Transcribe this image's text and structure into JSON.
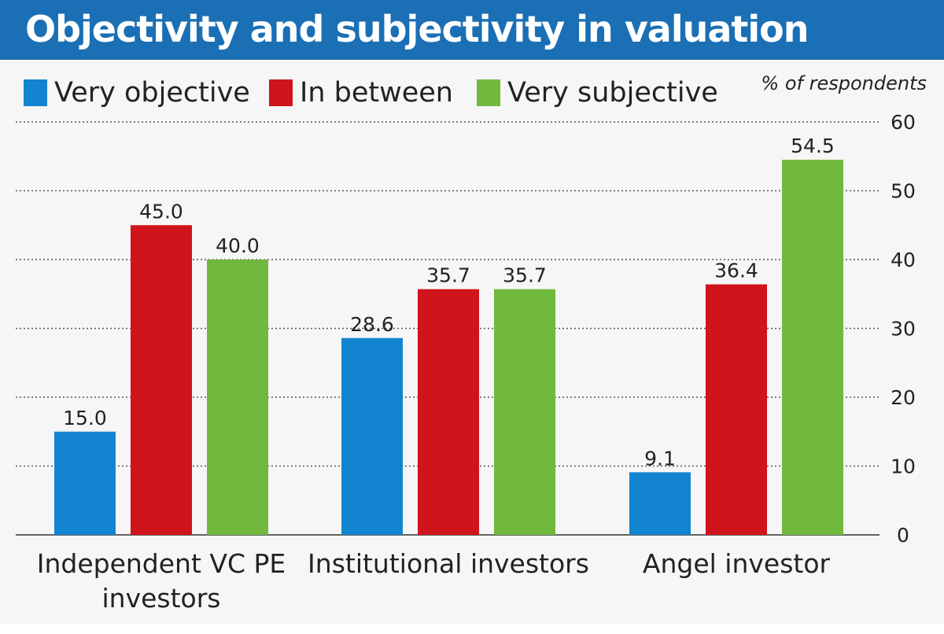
{
  "title": "Objectivity and subjectivity in valuation",
  "unit_label": "% of respondents",
  "colors": {
    "header": "#1a6fb5",
    "very_objective": "#1384cf",
    "in_between": "#d0141c",
    "very_subjective": "#71b83e"
  },
  "legend": [
    {
      "label": "Very objective",
      "color": "#1384cf"
    },
    {
      "label": "In between",
      "color": "#d0141c"
    },
    {
      "label": "Very subjective",
      "color": "#71b83e"
    }
  ],
  "chart_data": {
    "type": "bar",
    "title": "Objectivity and subjectivity in valuation",
    "ylabel": "% of respondents",
    "xlabel": "",
    "categories": [
      [
        "Independent VC PE",
        "investors"
      ],
      [
        "Institutional investors"
      ],
      [
        "Angel investor"
      ]
    ],
    "series": [
      {
        "name": "Very objective",
        "color": "#1384cf",
        "values": [
          15.0,
          28.6,
          9.1
        ],
        "labels": [
          "15.0",
          "28.6",
          "9.1"
        ]
      },
      {
        "name": "In between",
        "color": "#d0141c",
        "values": [
          45.0,
          35.7,
          36.4
        ],
        "labels": [
          "45.0",
          "35.7",
          "36.4"
        ]
      },
      {
        "name": "Very subjective",
        "color": "#71b83e",
        "values": [
          40.0,
          35.7,
          54.5
        ],
        "labels": [
          "40.0",
          "35.7",
          "54.5"
        ]
      }
    ],
    "ylim": [
      0,
      60
    ],
    "yticks": [
      0,
      10,
      20,
      30,
      40,
      50,
      60
    ],
    "y_axis_position": "right",
    "grid": "dotted horizontal",
    "legend_position": "top"
  }
}
